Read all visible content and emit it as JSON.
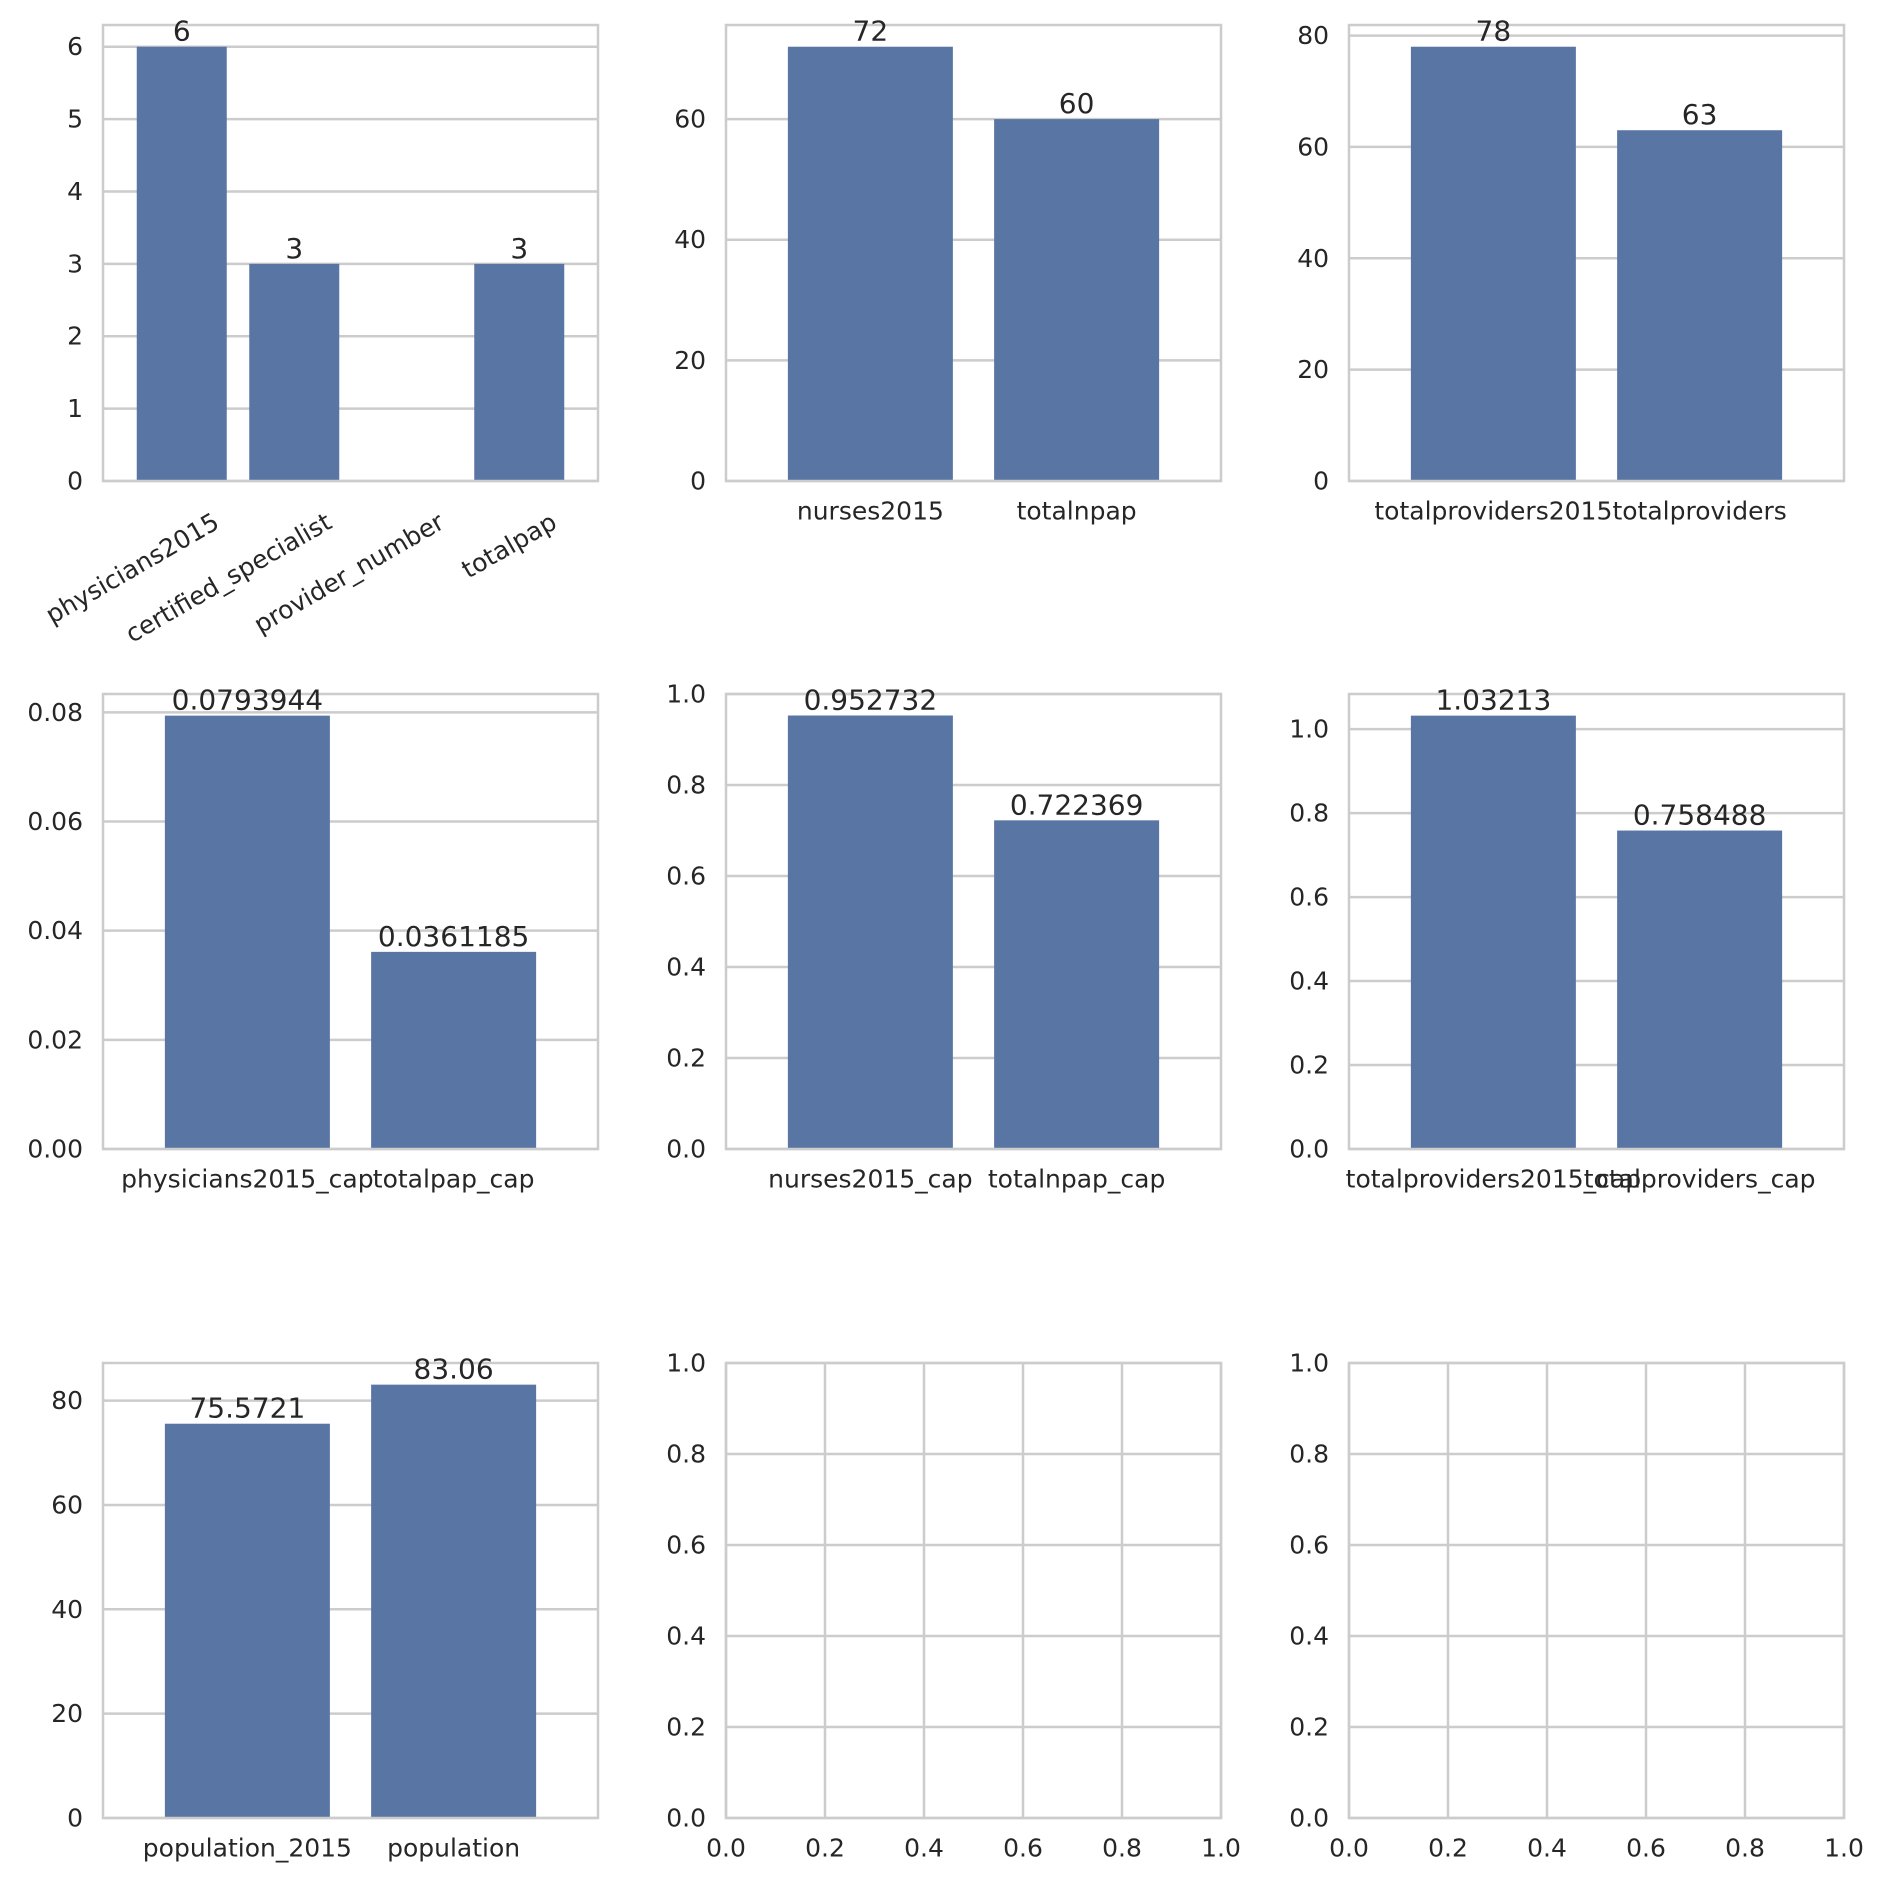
{
  "bar_color": "#5975a4",
  "grid_color": "#cccccc",
  "text_color": "#262626",
  "chart_data": [
    {
      "type": "bar",
      "categories": [
        "physicians2015",
        "certified_specialist",
        "provider_number",
        "totalpap"
      ],
      "values": [
        6,
        3,
        null,
        3
      ],
      "labels": [
        "6",
        "3",
        "",
        "3"
      ],
      "ylim": [
        0,
        6.3
      ],
      "yticks": [
        0,
        1,
        2,
        3,
        4,
        5,
        6
      ],
      "ytick_labels": [
        "0",
        "1",
        "2",
        "3",
        "4",
        "5",
        "6"
      ],
      "xtick_rotation": 30,
      "grid": true
    },
    {
      "type": "bar",
      "categories": [
        "nurses2015",
        "totalnpap"
      ],
      "values": [
        72,
        60
      ],
      "labels": [
        "72",
        "60"
      ],
      "ylim": [
        0,
        75.6
      ],
      "yticks": [
        0,
        20,
        40,
        60
      ],
      "ytick_labels": [
        "0",
        "20",
        "40",
        "60"
      ],
      "grid": true
    },
    {
      "type": "bar",
      "categories": [
        "totalproviders2015",
        "totalproviders"
      ],
      "values": [
        78,
        63
      ],
      "labels": [
        "78",
        "63"
      ],
      "ylim": [
        0,
        81.9
      ],
      "yticks": [
        0,
        20,
        40,
        60,
        80
      ],
      "ytick_labels": [
        "0",
        "20",
        "40",
        "60",
        "80"
      ],
      "grid": true
    },
    {
      "type": "bar",
      "categories": [
        "physicians2015_cap",
        "totalpap_cap"
      ],
      "values": [
        0.0793944,
        0.0361185
      ],
      "labels": [
        "0.0793944",
        "0.0361185"
      ],
      "ylim": [
        0,
        0.08336
      ],
      "yticks": [
        0,
        0.02,
        0.04,
        0.06,
        0.08
      ],
      "ytick_labels": [
        "0.00",
        "0.02",
        "0.04",
        "0.06",
        "0.08"
      ],
      "grid": true
    },
    {
      "type": "bar",
      "categories": [
        "nurses2015_cap",
        "totalnpap_cap"
      ],
      "values": [
        0.952732,
        0.722369
      ],
      "labels": [
        "0.952732",
        "0.722369"
      ],
      "ylim": [
        0,
        1.0
      ],
      "yticks": [
        0,
        0.2,
        0.4,
        0.6,
        0.8,
        1.0
      ],
      "ytick_labels": [
        "0.0",
        "0.2",
        "0.4",
        "0.6",
        "0.8",
        "1.0"
      ],
      "grid": true
    },
    {
      "type": "bar",
      "categories": [
        "totalproviders2015_cap",
        "totalproviders_cap"
      ],
      "values": [
        1.03213,
        0.758488
      ],
      "labels": [
        "1.03213",
        "0.758488"
      ],
      "ylim": [
        0,
        1.0837
      ],
      "yticks": [
        0,
        0.2,
        0.4,
        0.6,
        0.8,
        1.0
      ],
      "ytick_labels": [
        "0.0",
        "0.2",
        "0.4",
        "0.6",
        "0.8",
        "1.0"
      ],
      "grid": true
    },
    {
      "type": "bar",
      "categories": [
        "population_2015",
        "population"
      ],
      "values": [
        75.5721,
        83.06
      ],
      "labels": [
        "75.5721",
        "83.06"
      ],
      "ylim": [
        0,
        87.21
      ],
      "yticks": [
        0,
        20,
        40,
        60,
        80
      ],
      "ytick_labels": [
        "0",
        "20",
        "40",
        "60",
        "80"
      ],
      "grid": true
    },
    {
      "type": "bar",
      "categories": [],
      "values": [],
      "xlim": [
        0,
        1
      ],
      "ylim": [
        0,
        1
      ],
      "xticks": [
        0,
        0.2,
        0.4,
        0.6,
        0.8,
        1.0
      ],
      "xtick_labels": [
        "0.0",
        "0.2",
        "0.4",
        "0.6",
        "0.8",
        "1.0"
      ],
      "yticks": [
        0,
        0.2,
        0.4,
        0.6,
        0.8,
        1.0
      ],
      "ytick_labels": [
        "0.0",
        "0.2",
        "0.4",
        "0.6",
        "0.8",
        "1.0"
      ],
      "grid": true
    },
    {
      "type": "bar",
      "categories": [],
      "values": [],
      "xlim": [
        0,
        1
      ],
      "ylim": [
        0,
        1
      ],
      "xticks": [
        0,
        0.2,
        0.4,
        0.6,
        0.8,
        1.0
      ],
      "xtick_labels": [
        "0.0",
        "0.2",
        "0.4",
        "0.6",
        "0.8",
        "1.0"
      ],
      "yticks": [
        0,
        0.2,
        0.4,
        0.6,
        0.8,
        1.0
      ],
      "ytick_labels": [
        "0.0",
        "0.2",
        "0.4",
        "0.6",
        "0.8",
        "1.0"
      ],
      "grid": true
    }
  ]
}
